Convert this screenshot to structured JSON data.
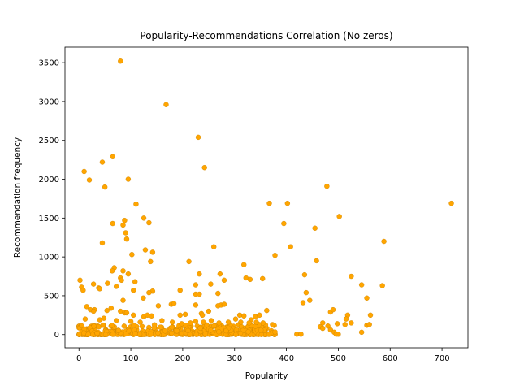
{
  "chart_data": {
    "type": "scatter",
    "title": "Popularity-Recommendations Correlation (No zeros)",
    "xlabel": "Popularity",
    "ylabel": "Recommendation frequency",
    "xlim": [
      -27,
      750
    ],
    "ylim": [
      -170,
      3700
    ],
    "xticks": [
      0,
      100,
      200,
      300,
      400,
      500,
      600,
      700
    ],
    "yticks": [
      0,
      500,
      1000,
      1500,
      2000,
      2500,
      3000,
      3500
    ],
    "grid": false,
    "legend": "none",
    "color": "#ffa500",
    "edgecolor": "#cc8400",
    "series": [
      {
        "points": [
          [
            80,
            3520
          ],
          [
            168,
            2960
          ],
          [
            230,
            2540
          ],
          [
            242,
            2150
          ],
          [
            65,
            2290
          ],
          [
            45,
            2220
          ],
          [
            10,
            2100
          ],
          [
            20,
            1990
          ],
          [
            95,
            2000
          ],
          [
            50,
            1900
          ],
          [
            478,
            1910
          ],
          [
            718,
            1690
          ],
          [
            110,
            1680
          ],
          [
            367,
            1690
          ],
          [
            402,
            1690
          ],
          [
            125,
            1500
          ],
          [
            135,
            1440
          ],
          [
            65,
            1430
          ],
          [
            88,
            1470
          ],
          [
            85,
            1410
          ],
          [
            395,
            1430
          ],
          [
            502,
            1520
          ],
          [
            455,
            1370
          ],
          [
            90,
            1310
          ],
          [
            92,
            1230
          ],
          [
            45,
            1180
          ],
          [
            408,
            1130
          ],
          [
            260,
            1130
          ],
          [
            588,
            1200
          ],
          [
            128,
            1090
          ],
          [
            142,
            1060
          ],
          [
            102,
            1030
          ],
          [
            378,
            1020
          ],
          [
            458,
            950
          ],
          [
            212,
            940
          ],
          [
            138,
            940
          ],
          [
            318,
            900
          ],
          [
            85,
            820
          ],
          [
            68,
            860
          ],
          [
            64,
            820
          ],
          [
            95,
            780
          ],
          [
            80,
            730
          ],
          [
            82,
            700
          ],
          [
            108,
            680
          ],
          [
            232,
            780
          ],
          [
            272,
            780
          ],
          [
            435,
            770
          ],
          [
            525,
            750
          ],
          [
            2,
            700
          ],
          [
            322,
            730
          ],
          [
            330,
            710
          ],
          [
            280,
            700
          ],
          [
            354,
            720
          ],
          [
            254,
            650
          ],
          [
            225,
            640
          ],
          [
            28,
            650
          ],
          [
            55,
            660
          ],
          [
            72,
            620
          ],
          [
            5,
            610
          ],
          [
            8,
            570
          ],
          [
            38,
            600
          ],
          [
            40,
            590
          ],
          [
            585,
            630
          ],
          [
            545,
            640
          ],
          [
            105,
            570
          ],
          [
            142,
            560
          ],
          [
            195,
            570
          ],
          [
            135,
            540
          ],
          [
            438,
            540
          ],
          [
            268,
            530
          ],
          [
            225,
            520
          ],
          [
            232,
            520
          ],
          [
            555,
            470
          ],
          [
            445,
            440
          ],
          [
            124,
            470
          ],
          [
            85,
            440
          ],
          [
            432,
            410
          ],
          [
            178,
            390
          ],
          [
            183,
            400
          ],
          [
            225,
            380
          ],
          [
            268,
            370
          ],
          [
            274,
            380
          ],
          [
            280,
            390
          ],
          [
            250,
            300
          ],
          [
            15,
            360
          ],
          [
            22,
            320
          ],
          [
            30,
            320
          ],
          [
            28,
            300
          ],
          [
            54,
            310
          ],
          [
            62,
            340
          ],
          [
            80,
            300
          ],
          [
            88,
            280
          ],
          [
            92,
            280
          ],
          [
            105,
            250
          ],
          [
            125,
            230
          ],
          [
            132,
            250
          ],
          [
            140,
            240
          ],
          [
            153,
            370
          ],
          [
            205,
            260
          ],
          [
            195,
            250
          ],
          [
            236,
            270
          ],
          [
            238,
            250
          ],
          [
            310,
            250
          ],
          [
            318,
            240
          ],
          [
            340,
            230
          ],
          [
            348,
            250
          ],
          [
            362,
            310
          ],
          [
            485,
            290
          ],
          [
            490,
            320
          ],
          [
            518,
            250
          ],
          [
            562,
            250
          ],
          [
            302,
            200
          ],
          [
            332,
            190
          ],
          [
            12,
            200
          ],
          [
            40,
            190
          ],
          [
            48,
            210
          ],
          [
            72,
            180
          ],
          [
            100,
            170
          ],
          [
            118,
            160
          ],
          [
            160,
            180
          ],
          [
            180,
            160
          ],
          [
            198,
            140
          ],
          [
            215,
            150
          ],
          [
            225,
            170
          ],
          [
            240,
            160
          ],
          [
            255,
            180
          ],
          [
            270,
            150
          ],
          [
            288,
            160
          ],
          [
            312,
            160
          ],
          [
            328,
            150
          ],
          [
            342,
            160
          ],
          [
            355,
            150
          ],
          [
            470,
            150
          ],
          [
            498,
            140
          ],
          [
            513,
            130
          ],
          [
            525,
            150
          ],
          [
            555,
            120
          ],
          [
            480,
            110
          ],
          [
            465,
            100
          ],
          [
            470,
            80
          ],
          [
            485,
            60
          ],
          [
            492,
            30
          ],
          [
            496,
            5
          ],
          [
            500,
            5
          ],
          [
            515,
            200
          ],
          [
            545,
            30
          ],
          [
            420,
            5
          ],
          [
            428,
            5
          ],
          [
            560,
            130
          ]
        ]
      }
    ],
    "dense_band": {
      "x_range": [
        0,
        380
      ],
      "y_range": [
        0,
        130
      ],
      "approx_points": 420
    }
  }
}
